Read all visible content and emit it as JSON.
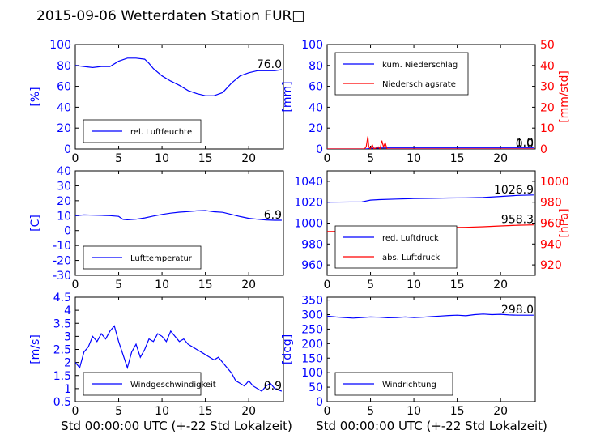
{
  "title": "2015-09-06 Wetterdaten Station FUR□",
  "xlabel": "Std 00:00:00 UTC (+-22 Std Lokalzeit)",
  "colors": {
    "left_axis": "#0000ff",
    "right_axis": "#ff0000",
    "series_blue": "#0000ff",
    "series_red": "#ff0000"
  },
  "chart_data": [
    {
      "id": "humidity",
      "type": "line",
      "ylabel": "[%]",
      "ylim": [
        0,
        100
      ],
      "yticks": [
        0,
        20,
        40,
        60,
        80,
        100
      ],
      "xlim": [
        0,
        24
      ],
      "xticks": [
        0,
        5,
        10,
        15,
        20
      ],
      "last_value_label": "76.0",
      "legend_position": "lower-left",
      "series": [
        {
          "name": "rel. Luftfeuchte",
          "color": "#0000ff",
          "axis": "left",
          "points": [
            [
              0,
              80
            ],
            [
              1,
              79
            ],
            [
              2,
              78
            ],
            [
              3,
              79
            ],
            [
              4,
              79
            ],
            [
              5,
              84
            ],
            [
              6,
              87
            ],
            [
              7,
              87
            ],
            [
              8,
              86
            ],
            [
              8.5,
              82
            ],
            [
              9,
              77
            ],
            [
              10,
              70
            ],
            [
              11,
              65
            ],
            [
              12,
              61
            ],
            [
              13,
              56
            ],
            [
              14,
              53
            ],
            [
              15,
              51
            ],
            [
              16,
              51
            ],
            [
              17,
              54
            ],
            [
              18,
              63
            ],
            [
              19,
              70
            ],
            [
              20,
              73
            ],
            [
              21,
              75
            ],
            [
              22,
              75
            ],
            [
              23,
              75
            ],
            [
              23.8,
              76
            ]
          ]
        }
      ]
    },
    {
      "id": "precipitation",
      "type": "line",
      "ylabel": "[mm]",
      "ylim": [
        0,
        100
      ],
      "yticks": [
        0,
        20,
        40,
        60,
        80,
        100
      ],
      "xlim": [
        0,
        24
      ],
      "xticks": [
        0,
        5,
        10,
        15,
        20
      ],
      "y2label": "[mm/std]",
      "y2lim": [
        0,
        50
      ],
      "y2ticks": [
        0,
        10,
        20,
        30,
        40,
        50
      ],
      "last_value_label": "1.0",
      "last_value_label_2": "0.0",
      "legend_position": "upper-left",
      "series": [
        {
          "name": "kum. Niederschlag",
          "color": "#0000ff",
          "axis": "left",
          "points": [
            [
              0,
              0
            ],
            [
              4.5,
              0
            ],
            [
              5,
              0.5
            ],
            [
              6,
              0.9
            ],
            [
              7,
              1.0
            ],
            [
              23.8,
              1.0
            ]
          ]
        },
        {
          "name": "Niederschlagsrate",
          "color": "#ff0000",
          "axis": "right",
          "points": [
            [
              0,
              0
            ],
            [
              4.3,
              0
            ],
            [
              4.5,
              1
            ],
            [
              4.7,
              6
            ],
            [
              4.8,
              1
            ],
            [
              5,
              0
            ],
            [
              5.2,
              2
            ],
            [
              5.4,
              0
            ],
            [
              5.9,
              1
            ],
            [
              6.1,
              0
            ],
            [
              6.3,
              4
            ],
            [
              6.5,
              1
            ],
            [
              6.7,
              3
            ],
            [
              6.9,
              0
            ],
            [
              23.8,
              0
            ]
          ]
        }
      ]
    },
    {
      "id": "temperature",
      "type": "line",
      "ylabel": "[C]",
      "ylim": [
        -30,
        40
      ],
      "yticks": [
        -30,
        -20,
        -10,
        0,
        10,
        20,
        30,
        40
      ],
      "xlim": [
        0,
        24
      ],
      "xticks": [
        0,
        5,
        10,
        15,
        20
      ],
      "last_value_label": "6.9",
      "legend_position": "lower-left",
      "series": [
        {
          "name": "Lufttemperatur",
          "color": "#0000ff",
          "axis": "left",
          "points": [
            [
              0,
              10
            ],
            [
              1,
              10.5
            ],
            [
              2,
              10.3
            ],
            [
              3,
              10.2
            ],
            [
              4,
              10
            ],
            [
              5,
              9.5
            ],
            [
              5.5,
              7.5
            ],
            [
              6,
              7.2
            ],
            [
              7,
              7.6
            ],
            [
              8,
              8.5
            ],
            [
              9,
              9.7
            ],
            [
              10,
              10.8
            ],
            [
              11,
              11.7
            ],
            [
              12,
              12.3
            ],
            [
              13,
              12.7
            ],
            [
              14,
              13.2
            ],
            [
              15,
              13.4
            ],
            [
              16,
              12.6
            ],
            [
              17,
              12.2
            ],
            [
              18,
              10.8
            ],
            [
              19,
              9.4
            ],
            [
              20,
              8.2
            ],
            [
              21,
              7.6
            ],
            [
              22,
              7.1
            ],
            [
              23,
              6.9
            ],
            [
              23.8,
              6.9
            ]
          ]
        }
      ]
    },
    {
      "id": "pressure",
      "type": "line",
      "ylabel": "",
      "ylim": [
        950,
        1050
      ],
      "yticks": [
        960,
        980,
        1000,
        1020,
        1040
      ],
      "xlim": [
        0,
        24
      ],
      "xticks": [
        0,
        5,
        10,
        15,
        20
      ],
      "y2label": "[hPa]",
      "y2lim": [
        910,
        1010
      ],
      "y2ticks": [
        920,
        940,
        960,
        980,
        1000
      ],
      "last_value_label": "1026.9",
      "last_value_label_2": "958.3",
      "legend_position": "lower-left",
      "series": [
        {
          "name": "red. Luftdruck",
          "color": "#0000ff",
          "axis": "left",
          "points": [
            [
              0,
              1020
            ],
            [
              4,
              1020.3
            ],
            [
              5,
              1022
            ],
            [
              6,
              1022.5
            ],
            [
              8,
              1023
            ],
            [
              10,
              1023.5
            ],
            [
              12,
              1023.7
            ],
            [
              14,
              1024
            ],
            [
              16,
              1024.2
            ],
            [
              18,
              1024.5
            ],
            [
              20,
              1025.5
            ],
            [
              22,
              1026.5
            ],
            [
              23.8,
              1026.9
            ]
          ]
        },
        {
          "name": "abs. Luftdruck",
          "color": "#ff0000",
          "axis": "right",
          "points": [
            [
              0,
              952
            ],
            [
              4,
              952.2
            ],
            [
              5,
              953.5
            ],
            [
              6,
              954
            ],
            [
              8,
              954.5
            ],
            [
              10,
              955
            ],
            [
              12,
              955.3
            ],
            [
              14,
              955.7
            ],
            [
              16,
              956
            ],
            [
              18,
              956.5
            ],
            [
              20,
              957.3
            ],
            [
              22,
              958
            ],
            [
              23.8,
              958.3
            ]
          ]
        }
      ]
    },
    {
      "id": "wind_speed",
      "type": "line",
      "ylabel": "[m/s]",
      "ylim": [
        0.5,
        4.5
      ],
      "yticks": [
        0.5,
        1.0,
        1.5,
        2.0,
        2.5,
        3.0,
        3.5,
        4.0,
        4.5
      ],
      "xlim": [
        0,
        24
      ],
      "xticks": [
        0,
        5,
        10,
        15,
        20
      ],
      "last_value_label": "0.9",
      "legend_position": "lower-left",
      "series": [
        {
          "name": "Windgeschwindigkeit",
          "color": "#0000ff",
          "axis": "left",
          "points": [
            [
              0,
              2.0
            ],
            [
              0.5,
              1.8
            ],
            [
              1,
              2.4
            ],
            [
              1.5,
              2.6
            ],
            [
              2,
              3.0
            ],
            [
              2.5,
              2.8
            ],
            [
              3,
              3.1
            ],
            [
              3.5,
              2.9
            ],
            [
              4,
              3.2
            ],
            [
              4.5,
              3.4
            ],
            [
              5,
              2.8
            ],
            [
              5.5,
              2.3
            ],
            [
              6,
              1.8
            ],
            [
              6.5,
              2.4
            ],
            [
              7,
              2.7
            ],
            [
              7.5,
              2.2
            ],
            [
              8,
              2.5
            ],
            [
              8.5,
              2.9
            ],
            [
              9,
              2.8
            ],
            [
              9.5,
              3.1
            ],
            [
              10,
              3.0
            ],
            [
              10.5,
              2.8
            ],
            [
              11,
              3.2
            ],
            [
              11.5,
              3.0
            ],
            [
              12,
              2.8
            ],
            [
              12.5,
              2.9
            ],
            [
              13,
              2.7
            ],
            [
              13.5,
              2.6
            ],
            [
              14,
              2.5
            ],
            [
              14.5,
              2.4
            ],
            [
              15,
              2.3
            ],
            [
              15.5,
              2.2
            ],
            [
              16,
              2.1
            ],
            [
              16.5,
              2.2
            ],
            [
              17,
              2.0
            ],
            [
              17.5,
              1.8
            ],
            [
              18,
              1.6
            ],
            [
              18.5,
              1.3
            ],
            [
              19,
              1.2
            ],
            [
              19.5,
              1.1
            ],
            [
              20,
              1.3
            ],
            [
              20.5,
              1.1
            ],
            [
              21,
              1.0
            ],
            [
              21.5,
              0.9
            ],
            [
              22,
              1.1
            ],
            [
              22.5,
              1.2
            ],
            [
              23,
              1.0
            ],
            [
              23.8,
              0.9
            ]
          ]
        }
      ]
    },
    {
      "id": "wind_direction",
      "type": "line",
      "ylabel": "[deg]",
      "ylim": [
        0,
        360
      ],
      "yticks": [
        0,
        50,
        100,
        150,
        200,
        250,
        300,
        350
      ],
      "xlim": [
        0,
        24
      ],
      "xticks": [
        0,
        5,
        10,
        15,
        20
      ],
      "last_value_label": "298.0",
      "legend_position": "lower-left",
      "series": [
        {
          "name": "Windrichtung",
          "color": "#0000ff",
          "axis": "left",
          "points": [
            [
              0,
              295
            ],
            [
              1,
              292
            ],
            [
              2,
              290
            ],
            [
              3,
              288
            ],
            [
              4,
              290
            ],
            [
              5,
              292
            ],
            [
              6,
              291
            ],
            [
              7,
              289
            ],
            [
              8,
              290
            ],
            [
              9,
              292
            ],
            [
              10,
              290
            ],
            [
              11,
              291
            ],
            [
              12,
              293
            ],
            [
              13,
              295
            ],
            [
              14,
              297
            ],
            [
              15,
              298
            ],
            [
              16,
              296
            ],
            [
              17,
              300
            ],
            [
              18,
              302
            ],
            [
              19,
              300
            ],
            [
              20,
              301
            ],
            [
              21,
              299
            ],
            [
              22,
              298
            ],
            [
              23,
              298
            ],
            [
              23.8,
              298
            ]
          ]
        }
      ]
    }
  ]
}
